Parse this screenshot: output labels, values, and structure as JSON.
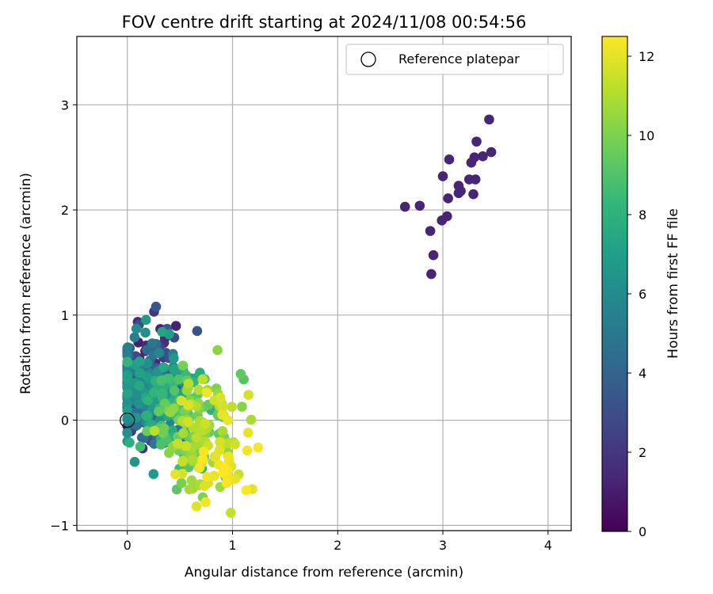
{
  "chart_data": {
    "type": "scatter",
    "title": "FOV centre drift starting at 2024/11/08 00:54:56",
    "xlabel": "Angular distance from reference (arcmin)",
    "ylabel": "Rotation from reference (arcmin)",
    "xlim": [
      -0.48,
      4.22
    ],
    "ylim": [
      -1.05,
      3.65
    ],
    "xticks": [
      0,
      1,
      2,
      3,
      4
    ],
    "yticks": [
      -1,
      0,
      1,
      2,
      3
    ],
    "grid": true,
    "legend": {
      "placement": "top-right",
      "entries": [
        "Reference platepar"
      ]
    },
    "reference_point": {
      "x": 0,
      "y": 0
    },
    "colorbar": {
      "label": "Hours from first FF file",
      "min": 0,
      "max": 12.5,
      "ticks": [
        0,
        2,
        4,
        6,
        8,
        10,
        12
      ],
      "colormap": "viridis"
    },
    "colormap_stops": [
      "#440154",
      "#482878",
      "#3e4989",
      "#31688e",
      "#26828e",
      "#1f9e89",
      "#35b779",
      "#6ece58",
      "#b5de2b",
      "#fde725"
    ],
    "early_points": [
      [
        3.44,
        2.86
      ],
      [
        3.32,
        2.65
      ],
      [
        3.46,
        2.55
      ],
      [
        3.38,
        2.51
      ],
      [
        3.3,
        2.5
      ],
      [
        3.27,
        2.45
      ],
      [
        3.06,
        2.48
      ],
      [
        3.0,
        2.32
      ],
      [
        3.25,
        2.29
      ],
      [
        3.31,
        2.29
      ],
      [
        3.15,
        2.23
      ],
      [
        3.17,
        2.18
      ],
      [
        3.15,
        2.16
      ],
      [
        3.29,
        2.15
      ],
      [
        3.05,
        2.11
      ],
      [
        2.64,
        2.03
      ],
      [
        2.78,
        2.04
      ],
      [
        3.04,
        1.94
      ],
      [
        2.99,
        1.9
      ],
      [
        2.88,
        1.8
      ],
      [
        2.91,
        1.57
      ],
      [
        2.89,
        1.39
      ]
    ],
    "cluster": {
      "count": 560,
      "hours_range": [
        1.0,
        12.5
      ],
      "trend": "centre drifts from about (0.25, 0.3) toward (0.95, -0.3) as hours increase",
      "extent_x": [
        0.0,
        1.28
      ],
      "extent_y": [
        -0.88,
        1.08
      ]
    }
  }
}
